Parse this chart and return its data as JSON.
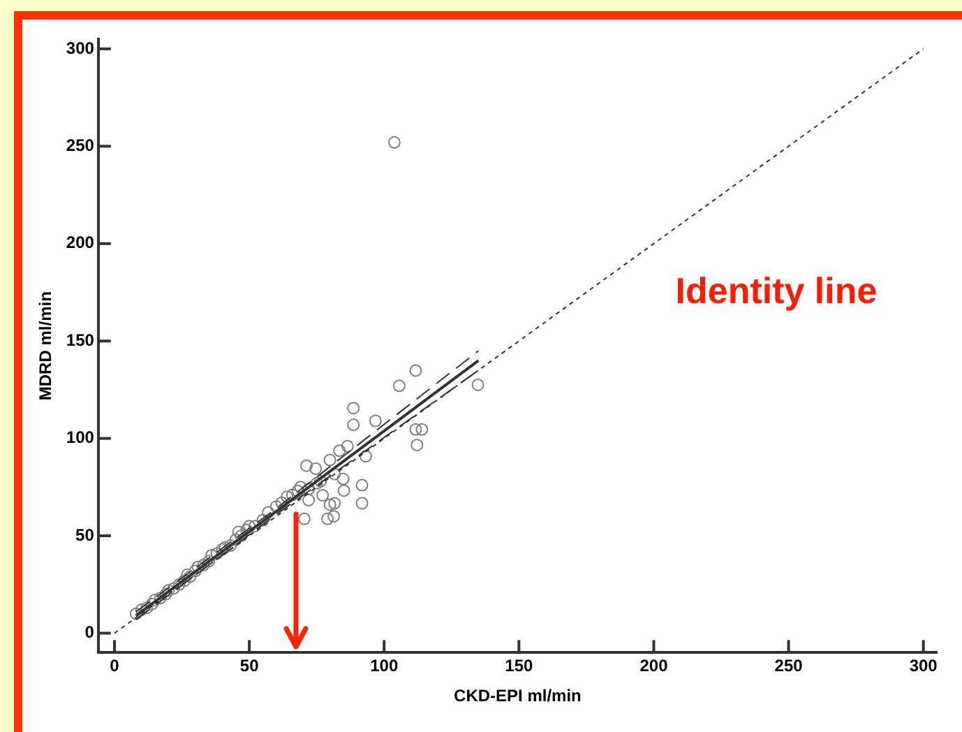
{
  "chart_data": {
    "type": "scatter",
    "xlabel": "CKD-EPI ml/min",
    "ylabel": "MDRD ml/min",
    "xlim": [
      -6,
      305
    ],
    "ylim": [
      -10,
      305
    ],
    "xticks": [
      0,
      50,
      100,
      150,
      200,
      250,
      300
    ],
    "yticks": [
      0,
      50,
      100,
      150,
      200,
      250,
      300
    ],
    "marker": "circle",
    "annotations": [
      "Identity line"
    ],
    "series": [
      {
        "color": "#808080",
        "x": [
          8,
          10,
          12,
          14,
          15,
          17,
          19,
          20,
          22,
          24,
          26,
          27,
          28,
          30,
          31,
          33,
          35,
          36,
          38,
          40,
          41,
          43,
          45,
          46,
          47,
          49,
          50,
          52,
          55,
          57,
          60,
          62,
          64,
          66,
          68,
          69,
          72,
          75,
          111.7,
          105.6,
          134.8,
          114,
          111.7,
          112.2,
          88.6,
          88.6,
          96.8,
          93.2,
          86.4,
          71.2,
          74.6,
          84.8,
          91.8,
          91.8,
          81.6,
          79.9,
          70.4,
          79,
          81.3,
          72,
          77.2,
          85.1,
          81.6,
          79.9,
          83.4,
          76.4,
          103.8
        ],
        "values": [
          10,
          12,
          13,
          15,
          17,
          18,
          20,
          22,
          23,
          25,
          27,
          30,
          29,
          32,
          34,
          35,
          37,
          40,
          41,
          43,
          44,
          45,
          48,
          52,
          50,
          53,
          55,
          55,
          58,
          62,
          65,
          67,
          70,
          71,
          73,
          75,
          74,
          77,
          134.8,
          127,
          127.5,
          104.6,
          104.6,
          96.6,
          115.5,
          107,
          109,
          90.8,
          96,
          86,
          84.5,
          79.2,
          76,
          66.7,
          66.7,
          66,
          58.7,
          58.7,
          60,
          68.3,
          70.8,
          73.2,
          81.7,
          88.9,
          93.7,
          78,
          252
        ]
      },
      {
        "type": "line",
        "color": "#333333",
        "x": [
          8,
          60,
          135
        ],
        "values": [
          9,
          62.5,
          140
        ],
        "line_style": "solid",
        "marker": "none"
      },
      {
        "type": "line",
        "color": "#333333",
        "x": [
          8,
          60,
          135
        ],
        "values": [
          7,
          61,
          135
        ],
        "line_style": "dashed",
        "marker": "none"
      },
      {
        "type": "line",
        "color": "#333333",
        "x": [
          8,
          60,
          135
        ],
        "values": [
          11,
          64,
          145
        ],
        "line_style": "dashed",
        "marker": "none"
      },
      {
        "type": "line",
        "color": "#333333",
        "x": [
          0,
          300
        ],
        "values": [
          0,
          300
        ],
        "line_style": "dotted",
        "marker": "none"
      }
    ]
  }
}
